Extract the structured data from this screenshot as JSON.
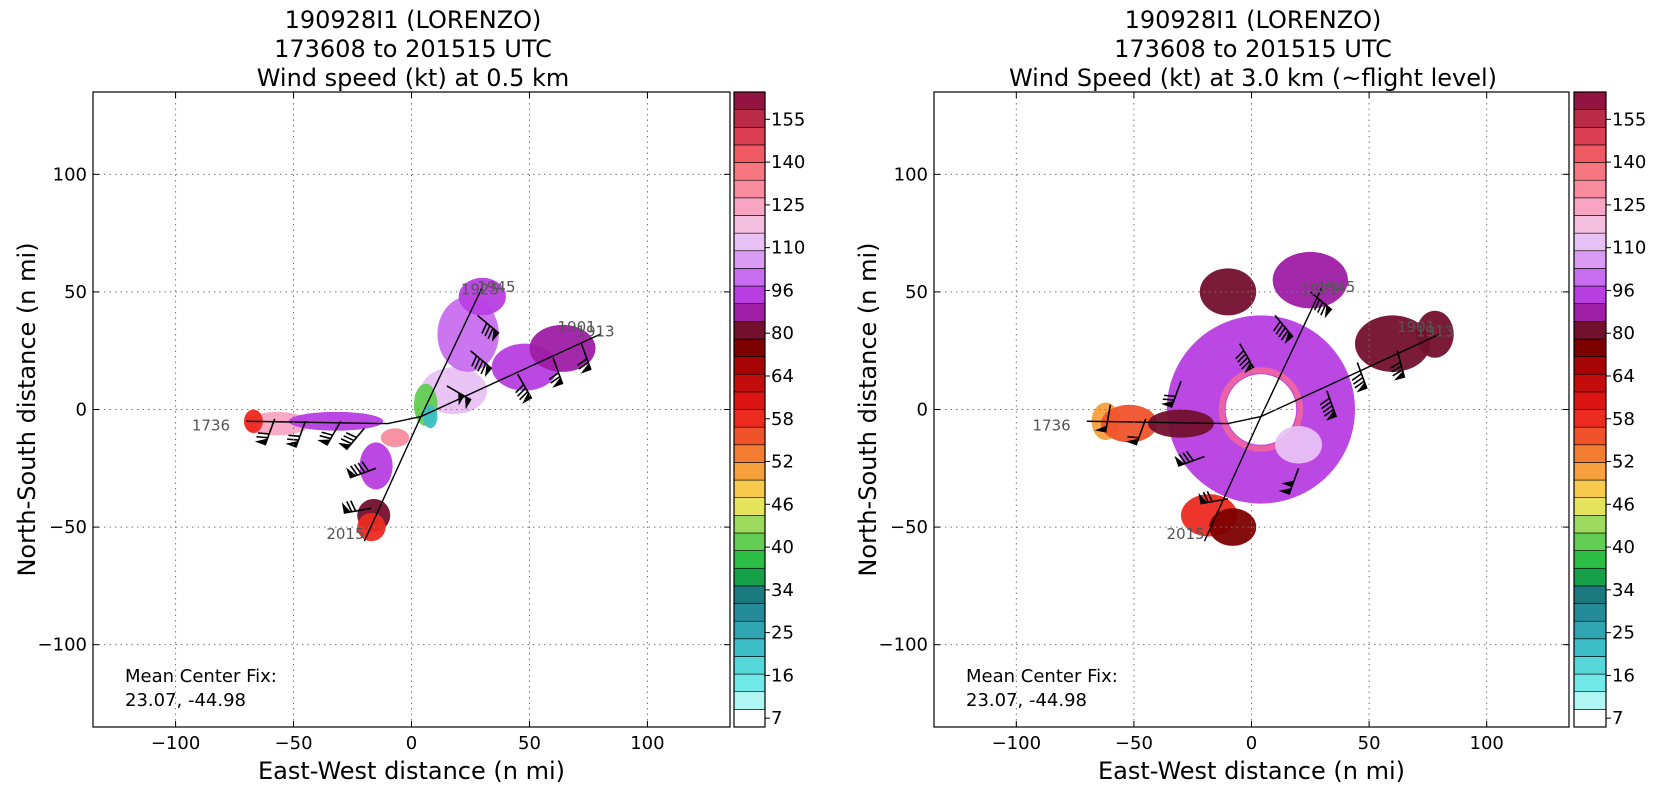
{
  "colors": {
    "colorbar": [
      "#ffffff",
      "#b0f7f4",
      "#71e9e9",
      "#55d6d8",
      "#3ebfc7",
      "#2ea5b0",
      "#248c98",
      "#1a7a80",
      "#16a04a",
      "#2cbd44",
      "#62cd52",
      "#9ddb5e",
      "#e6e45c",
      "#f8cb4e",
      "#f6a03e",
      "#f37d31",
      "#f0522a",
      "#ec2a20",
      "#dc1414",
      "#c50c0c",
      "#a70505",
      "#7d0000",
      "#73102e",
      "#9e1ea5",
      "#b83ee2",
      "#c96ef0",
      "#d99bf3",
      "#e8c1f4",
      "#f5c0e0",
      "#f8a5c4",
      "#f88c9e",
      "#f6777f",
      "#ef5a63",
      "#dc3f53",
      "#bb2a47",
      "#931440"
    ]
  },
  "chart_data": [
    {
      "type": "heatmap",
      "title": "190928I1 (LORENZO)\n173608 to 201515 UTC\nWind speed (kt) at 0.5 km",
      "title_lines": [
        "190928I1 (LORENZO)",
        "173608 to 201515 UTC",
        "Wind speed (kt) at 0.5 km"
      ],
      "xlabel": "East-West distance (n mi)",
      "ylabel": "North-South distance (n mi)",
      "xlim": [
        -135,
        135
      ],
      "ylim": [
        -135,
        135
      ],
      "xticks": [
        -100,
        -50,
        0,
        50,
        100
      ],
      "yticks": [
        -100,
        -50,
        0,
        50,
        100
      ],
      "grid": true,
      "colorbar_ticks": [
        7,
        16,
        25,
        34,
        40,
        46,
        52,
        58,
        64,
        80,
        96,
        110,
        125,
        140,
        155
      ],
      "annotation": [
        "Mean Center Fix:",
        "23.07, -44.98"
      ],
      "pass_labels": [
        {
          "text": "1736",
          "x": -85,
          "y": -9
        },
        {
          "text": "2015",
          "x": -28,
          "y": -55
        },
        {
          "text": "1913",
          "x": 78,
          "y": 31
        },
        {
          "text": "1901",
          "x": 70,
          "y": 33
        },
        {
          "text": "1945",
          "x": 36,
          "y": 50
        },
        {
          "text": "1925",
          "x": 29,
          "y": 49
        }
      ],
      "flight_track": [
        [
          -70,
          -5
        ],
        [
          -10,
          -6
        ],
        [
          4,
          -3
        ],
        [
          80,
          32
        ],
        [
          4,
          -3
        ],
        [
          30,
          52
        ],
        [
          4,
          -3
        ],
        [
          -20,
          -56
        ]
      ],
      "wind_regions": [
        {
          "cx": -57,
          "cy": -6,
          "rx": 14,
          "ry": 5,
          "speed": 120
        },
        {
          "cx": -67,
          "cy": -5,
          "rx": 4,
          "ry": 5,
          "speed": 58
        },
        {
          "cx": -32,
          "cy": -5,
          "rx": 20,
          "ry": 4,
          "speed": 90
        },
        {
          "cx": -15,
          "cy": -24,
          "rx": 7,
          "ry": 10,
          "speed": 92
        },
        {
          "cx": -16,
          "cy": -45,
          "rx": 7,
          "ry": 7,
          "speed": 80
        },
        {
          "cx": -17,
          "cy": -50,
          "rx": 6,
          "ry": 6,
          "speed": 58
        },
        {
          "cx": 18,
          "cy": 8,
          "rx": 14,
          "ry": 10,
          "speed": 108
        },
        {
          "cx": 24,
          "cy": 32,
          "rx": 13,
          "ry": 16,
          "speed": 100
        },
        {
          "cx": 30,
          "cy": 48,
          "rx": 10,
          "ry": 8,
          "speed": 88
        },
        {
          "cx": 48,
          "cy": 18,
          "rx": 14,
          "ry": 10,
          "speed": 88
        },
        {
          "cx": 64,
          "cy": 26,
          "rx": 14,
          "ry": 10,
          "speed": 86
        },
        {
          "cx": 6,
          "cy": 2,
          "rx": 5,
          "ry": 9,
          "speed": 40
        },
        {
          "cx": 8,
          "cy": -3,
          "rx": 3,
          "ry": 5,
          "speed": 20
        },
        {
          "cx": -7,
          "cy": -12,
          "rx": 6,
          "ry": 4,
          "speed": 125
        }
      ],
      "barbs": [
        {
          "x": -58,
          "y": -4,
          "speed": 75,
          "dir": 200
        },
        {
          "x": -45,
          "y": -5,
          "speed": 70,
          "dir": 200
        },
        {
          "x": -30,
          "y": -5,
          "speed": 75,
          "dir": 210
        },
        {
          "x": -20,
          "y": -8,
          "speed": 80,
          "dir": 220
        },
        {
          "x": -15,
          "y": -25,
          "speed": 90,
          "dir": 250
        },
        {
          "x": -17,
          "y": -42,
          "speed": 70,
          "dir": 260
        },
        {
          "x": 15,
          "y": 10,
          "speed": 100,
          "dir": 120
        },
        {
          "x": 25,
          "y": 25,
          "speed": 90,
          "dir": 130
        },
        {
          "x": 28,
          "y": 40,
          "speed": 85,
          "dir": 130
        },
        {
          "x": 45,
          "y": 15,
          "speed": 80,
          "dir": 150
        },
        {
          "x": 60,
          "y": 22,
          "speed": 75,
          "dir": 160
        },
        {
          "x": 72,
          "y": 28,
          "speed": 70,
          "dir": 160
        }
      ]
    },
    {
      "type": "heatmap",
      "title": "190928I1 (LORENZO)\n173608 to 201515 UTC\nWind Speed (kt) at 3.0 km (~flight level)",
      "title_lines": [
        "190928I1 (LORENZO)",
        "173608 to 201515 UTC",
        "Wind Speed (kt) at 3.0 km (~flight level)"
      ],
      "xlabel": "East-West distance (n mi)",
      "ylabel": "North-South distance (n mi)",
      "xlim": [
        -135,
        135
      ],
      "ylim": [
        -135,
        135
      ],
      "xticks": [
        -100,
        -50,
        0,
        50,
        100
      ],
      "yticks": [
        -100,
        -50,
        0,
        50,
        100
      ],
      "grid": true,
      "colorbar_ticks": [
        7,
        16,
        25,
        34,
        40,
        46,
        52,
        58,
        64,
        80,
        96,
        110,
        125,
        140,
        155
      ],
      "annotation": [
        "Mean Center Fix:",
        "23.07, -44.98"
      ],
      "pass_labels": [
        {
          "text": "1736",
          "x": -85,
          "y": -9
        },
        {
          "text": "2015",
          "x": -28,
          "y": -55
        },
        {
          "text": "1913",
          "x": 78,
          "y": 31
        },
        {
          "text": "1901",
          "x": 70,
          "y": 33
        },
        {
          "text": "1945",
          "x": 36,
          "y": 50
        },
        {
          "text": "1925",
          "x": 29,
          "y": 49
        }
      ],
      "flight_track": [
        [
          -70,
          -5
        ],
        [
          -10,
          -6
        ],
        [
          4,
          -3
        ],
        [
          80,
          32
        ],
        [
          4,
          -3
        ],
        [
          30,
          52
        ],
        [
          4,
          -3
        ],
        [
          -20,
          -56
        ]
      ],
      "wind_regions": [
        {
          "cx": -62,
          "cy": -5,
          "rx": 6,
          "ry": 8,
          "speed": 50
        },
        {
          "cx": -52,
          "cy": -6,
          "rx": 12,
          "ry": 8,
          "speed": 55
        },
        {
          "cx": -30,
          "cy": -6,
          "rx": 14,
          "ry": 6,
          "speed": 80
        },
        {
          "cx": -18,
          "cy": -45,
          "rx": 12,
          "ry": 9,
          "speed": 58
        },
        {
          "cx": -8,
          "cy": -50,
          "rx": 10,
          "ry": 8,
          "speed": 70
        },
        {
          "cx": -10,
          "cy": 50,
          "rx": 12,
          "ry": 10,
          "speed": 80
        },
        {
          "cx": 25,
          "cy": 55,
          "rx": 16,
          "ry": 12,
          "speed": 85
        },
        {
          "cx": 60,
          "cy": 28,
          "rx": 16,
          "ry": 12,
          "speed": 80
        },
        {
          "cx": 78,
          "cy": 32,
          "rx": 8,
          "ry": 10,
          "speed": 76
        },
        {
          "cx": 20,
          "cy": -15,
          "rx": 10,
          "ry": 8,
          "speed": 110
        },
        {
          "cx": 5,
          "cy": 0,
          "rx": 12,
          "ry": 12,
          "speed": 0
        }
      ],
      "ring": {
        "cx": 4,
        "cy": 0,
        "r_inner": 15,
        "r_outer": 40,
        "speed": 92
      },
      "barbs": [
        {
          "x": -60,
          "y": 2,
          "speed": 55,
          "dir": 190
        },
        {
          "x": -45,
          "y": -4,
          "speed": 60,
          "dir": 200
        },
        {
          "x": -30,
          "y": 12,
          "speed": 75,
          "dir": 200
        },
        {
          "x": -20,
          "y": -20,
          "speed": 85,
          "dir": 250
        },
        {
          "x": -10,
          "y": -38,
          "speed": 75,
          "dir": 260
        },
        {
          "x": -5,
          "y": 28,
          "speed": 95,
          "dir": 150
        },
        {
          "x": 10,
          "y": 40,
          "speed": 90,
          "dir": 140
        },
        {
          "x": 25,
          "y": 50,
          "speed": 85,
          "dir": 130
        },
        {
          "x": 32,
          "y": 8,
          "speed": 95,
          "dir": 160
        },
        {
          "x": 45,
          "y": 20,
          "speed": 85,
          "dir": 160
        },
        {
          "x": 62,
          "y": 25,
          "speed": 80,
          "dir": 165
        },
        {
          "x": 20,
          "y": -25,
          "speed": 100,
          "dir": 200
        }
      ]
    }
  ]
}
